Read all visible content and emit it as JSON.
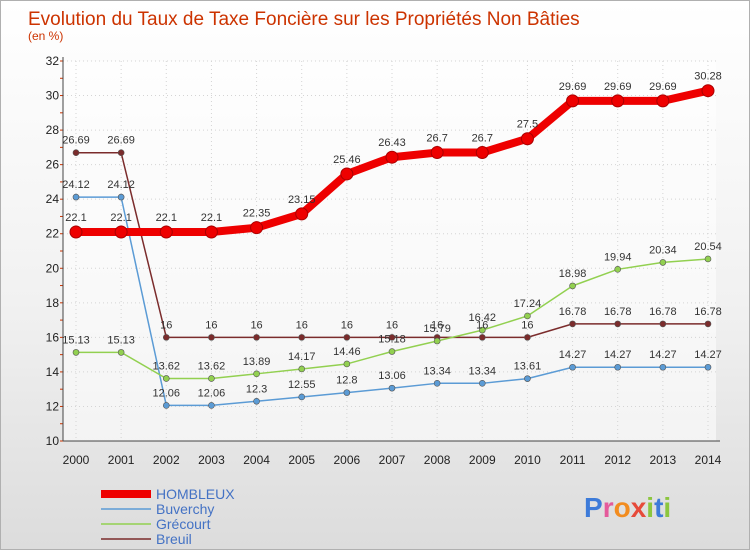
{
  "chart_data": {
    "type": "line",
    "title": "Evolution du Taux de Taxe Foncière sur les Propriétés Non Bâties",
    "ylabel": "(en %)",
    "xlabel": "",
    "ylim": [
      10,
      32
    ],
    "yticks": [
      10,
      12,
      14,
      16,
      18,
      20,
      22,
      24,
      26,
      28,
      30,
      32
    ],
    "categories": [
      "2000",
      "2001",
      "2002",
      "2003",
      "2004",
      "2005",
      "2006",
      "2007",
      "2008",
      "2009",
      "2010",
      "2011",
      "2012",
      "2013",
      "2014"
    ],
    "grid": true,
    "series": [
      {
        "name": "HOMBLEUX",
        "color": "#ee0000",
        "values": [
          22.1,
          22.1,
          22.1,
          22.1,
          22.35,
          23.15,
          25.46,
          26.43,
          26.7,
          26.7,
          27.5,
          29.69,
          29.69,
          29.69,
          30.28
        ],
        "labels": [
          "22.1",
          "22.1",
          "22.1",
          "22.1",
          "22.35",
          "23.15",
          "25.46",
          "26.43",
          "26.7",
          "26.7",
          "27.5",
          "29.69",
          "29.69",
          "29.69",
          "30.28"
        ]
      },
      {
        "name": "Buverchy",
        "color": "#5b9bd5",
        "values": [
          24.12,
          24.12,
          12.06,
          12.06,
          12.3,
          12.55,
          12.8,
          13.06,
          13.34,
          13.34,
          13.61,
          14.27,
          14.27,
          14.27,
          14.27
        ],
        "labels": [
          "24.12",
          "24.12",
          "12.06",
          "12.06",
          "12.3",
          "12.55",
          "12.8",
          "13.06",
          "13.34",
          "13.34",
          "13.61",
          "14.27",
          "14.27",
          "14.27",
          "14.27"
        ]
      },
      {
        "name": "Grécourt",
        "color": "#92d050",
        "values": [
          15.13,
          15.13,
          13.62,
          13.62,
          13.89,
          14.17,
          14.46,
          15.18,
          15.79,
          16.42,
          17.24,
          18.98,
          19.94,
          20.34,
          20.54
        ],
        "labels": [
          "15.13",
          "15.13",
          "13.62",
          "13.62",
          "13.89",
          "14.17",
          "14.46",
          "15.18",
          "15.79",
          "16.42",
          "17.24",
          "18.98",
          "19.94",
          "20.34",
          "20.54"
        ]
      },
      {
        "name": "Breuil",
        "color": "#7b2c2c",
        "values": [
          26.69,
          26.69,
          16,
          16,
          16,
          16,
          16,
          16,
          16,
          16,
          16,
          16.78,
          16.78,
          16.78,
          16.78
        ],
        "labels": [
          "26.69",
          "26.69",
          "16",
          "16",
          "16",
          "16",
          "16",
          "16",
          "16",
          "16",
          "16",
          "16.78",
          "16.78",
          "16.78",
          "16.78"
        ]
      }
    ],
    "legend_position": "bottom-left"
  },
  "brand": {
    "text": "Proxiti"
  }
}
